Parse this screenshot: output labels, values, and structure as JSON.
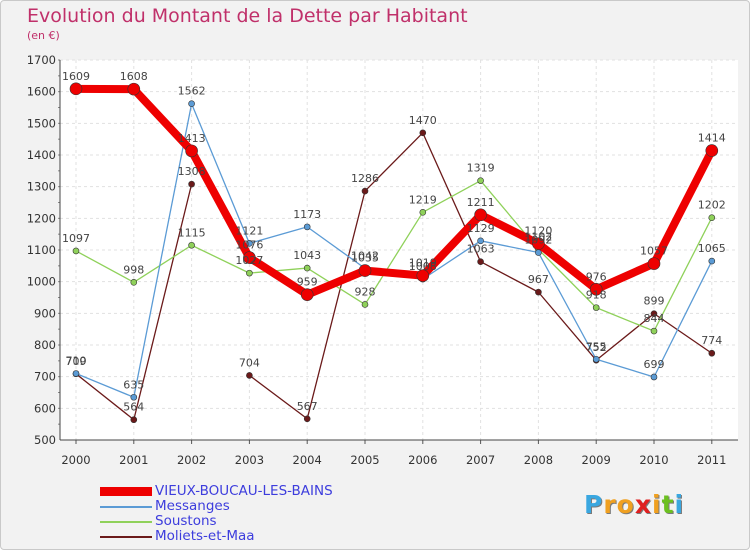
{
  "title": "Evolution du Montant de la Dette par Habitant",
  "unit_label": "(en €)",
  "logo": {
    "letters": [
      "P",
      "r",
      "o",
      "x",
      "i",
      "t",
      "i"
    ],
    "colors": [
      "#3aa7e0",
      "#f0a020",
      "#f0a020",
      "#e02020",
      "#f0a020",
      "#6cc020",
      "#3aa7e0"
    ]
  },
  "chart_data": {
    "type": "line",
    "title": "Evolution du Montant de la Dette par Habitant",
    "ylabel": "(en €)",
    "xlabel": "",
    "ylim": [
      500,
      1700
    ],
    "yticks": [
      500,
      600,
      700,
      800,
      900,
      1000,
      1100,
      1200,
      1300,
      1400,
      1500,
      1600,
      1700
    ],
    "categories": [
      "2000",
      "2001",
      "2002",
      "2003",
      "2004",
      "2005",
      "2006",
      "2007",
      "2008",
      "2009",
      "2010",
      "2011"
    ],
    "grid": true,
    "legend": "bottom-left",
    "series": [
      {
        "name": "Moliets-et-Maa",
        "color": "#6b1a1a",
        "values": [
          709,
          564,
          1308,
          null,
          567,
          1286,
          1470,
          1063,
          967,
          752,
          899,
          774
        ],
        "gap_segments": [
          [
            2,
            3
          ]
        ],
        "x2003": 704
      },
      {
        "name": "Soustons",
        "color": "#8fd15a",
        "values": [
          1097,
          998,
          1115,
          1027,
          1043,
          928,
          1219,
          1319,
          1102,
          918,
          844,
          1202
        ]
      },
      {
        "name": "Messanges",
        "color": "#5b9bd5",
        "values": [
          710,
          635,
          1562,
          1121,
          1173,
          1042,
          1008,
          1129,
          1092,
          755,
          699,
          1065
        ]
      },
      {
        "name": "VIEUX-BOUCAU-LES-BAINS",
        "color": "#ee0000",
        "values": [
          1609,
          1608,
          1413,
          1076,
          959,
          1035,
          1019,
          1211,
          1120,
          976,
          1057,
          1414
        ]
      }
    ],
    "data_labels": {
      "Moliets-et-Maa": [
        "709",
        "564",
        "1308",
        "704",
        "567",
        "1286",
        "1470",
        "1063",
        "967",
        "752",
        "899",
        "774"
      ],
      "Soustons": [
        "1097",
        "998",
        "1115",
        "1027",
        "1043",
        "928",
        "1219",
        "1319",
        "1102",
        "918",
        "844",
        "1202"
      ],
      "Messanges": [
        "710",
        "635",
        "1562",
        "1121",
        "1173",
        "1042",
        "1008",
        "1129",
        "1092",
        "755",
        "699",
        "1065"
      ],
      "VIEUX-BOUCAU-LES-BAINS": [
        "1609",
        "1608",
        "1413",
        "1076",
        "959",
        "1035",
        "1019",
        "1211",
        "1120",
        "976",
        "1057",
        "1414"
      ]
    }
  }
}
